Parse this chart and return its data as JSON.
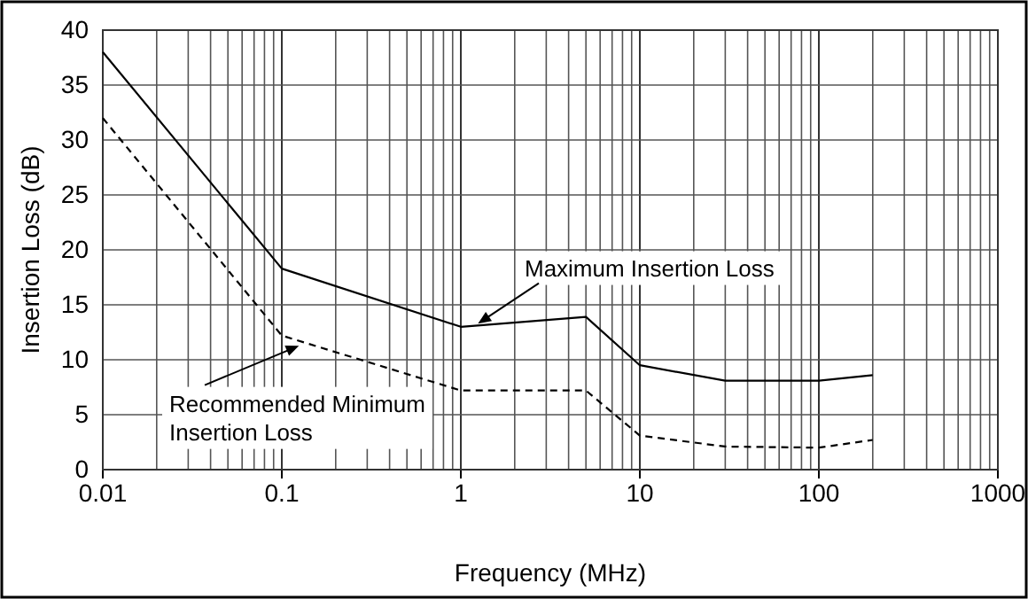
{
  "chart_data": {
    "type": "line",
    "xlabel": "Frequency (MHz)",
    "ylabel": "Insertion Loss (dB)",
    "log": "x",
    "xlim": [
      0.01,
      1000
    ],
    "xticks": [
      0.01,
      0.1,
      1,
      10,
      100,
      1000
    ],
    "ylim": [
      0,
      40
    ],
    "yticks": [
      0,
      5,
      10,
      15,
      20,
      25,
      30,
      35,
      40
    ],
    "grid": true,
    "marker": "none",
    "series": [
      {
        "color": "#000000",
        "line_style": "solid",
        "x": [
          0.01,
          0.1,
          1,
          5,
          10,
          30,
          100,
          200
        ],
        "values": [
          38,
          18.3,
          13,
          13.9,
          9.5,
          8.1,
          8.1,
          8.6
        ]
      },
      {
        "color": "#000000",
        "line_style": "dashed",
        "x": [
          0.01,
          0.1,
          1,
          5,
          10,
          30,
          100,
          200
        ],
        "values": [
          32,
          12.2,
          7.2,
          7.2,
          3.1,
          2.1,
          2,
          2.7
        ]
      }
    ],
    "annotations": [
      {
        "text": "Maximum Insertion Loss",
        "x": 1.2,
        "y": 13.1
      },
      {
        "text": "Recommended Minimum Insertion Loss",
        "x": 0.13,
        "y": 11.4
      }
    ]
  }
}
